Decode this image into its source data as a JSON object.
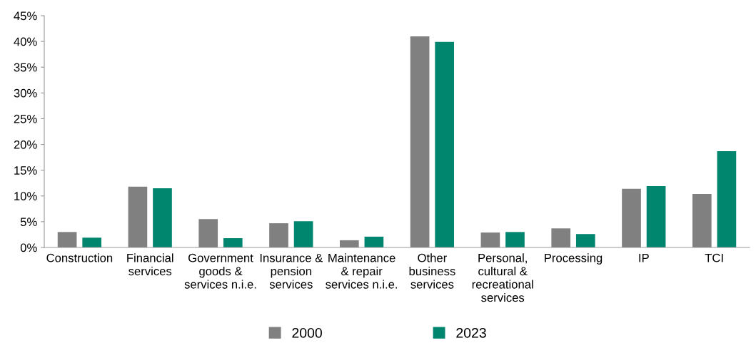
{
  "chart_data": {
    "type": "bar",
    "categories": [
      "Construction",
      "Financial\nservices",
      "Government\ngoods &\nservices n.i.e.",
      "Insurance &\npension\nservices",
      "Maintenance\n& repair\nservices n.i.e.",
      "Other\nbusiness\nservices",
      "Personal,\ncultural &\nrecreational\nservices",
      "Processing",
      "IP",
      "TCI"
    ],
    "series": [
      {
        "name": "2000",
        "color": "#808080",
        "values": [
          3.0,
          11.8,
          5.5,
          4.7,
          1.4,
          41.0,
          2.9,
          3.7,
          11.4,
          10.4
        ]
      },
      {
        "name": "2023",
        "color": "#00856f",
        "values": [
          1.9,
          11.5,
          1.8,
          5.1,
          2.1,
          39.9,
          3.0,
          2.6,
          11.9,
          18.7
        ]
      }
    ],
    "ylim": [
      0,
      45
    ],
    "yticks": [
      {
        "value": 0,
        "label": "0%"
      },
      {
        "value": 5,
        "label": "5%"
      },
      {
        "value": 10,
        "label": "10%"
      },
      {
        "value": 15,
        "label": "15%"
      },
      {
        "value": 20,
        "label": "20%"
      },
      {
        "value": 25,
        "label": "25%"
      },
      {
        "value": 30,
        "label": "30%"
      },
      {
        "value": 35,
        "label": "35%"
      },
      {
        "value": 40,
        "label": "40%"
      },
      {
        "value": 45,
        "label": "45%"
      }
    ],
    "grid": false,
    "legend": "bottom"
  }
}
